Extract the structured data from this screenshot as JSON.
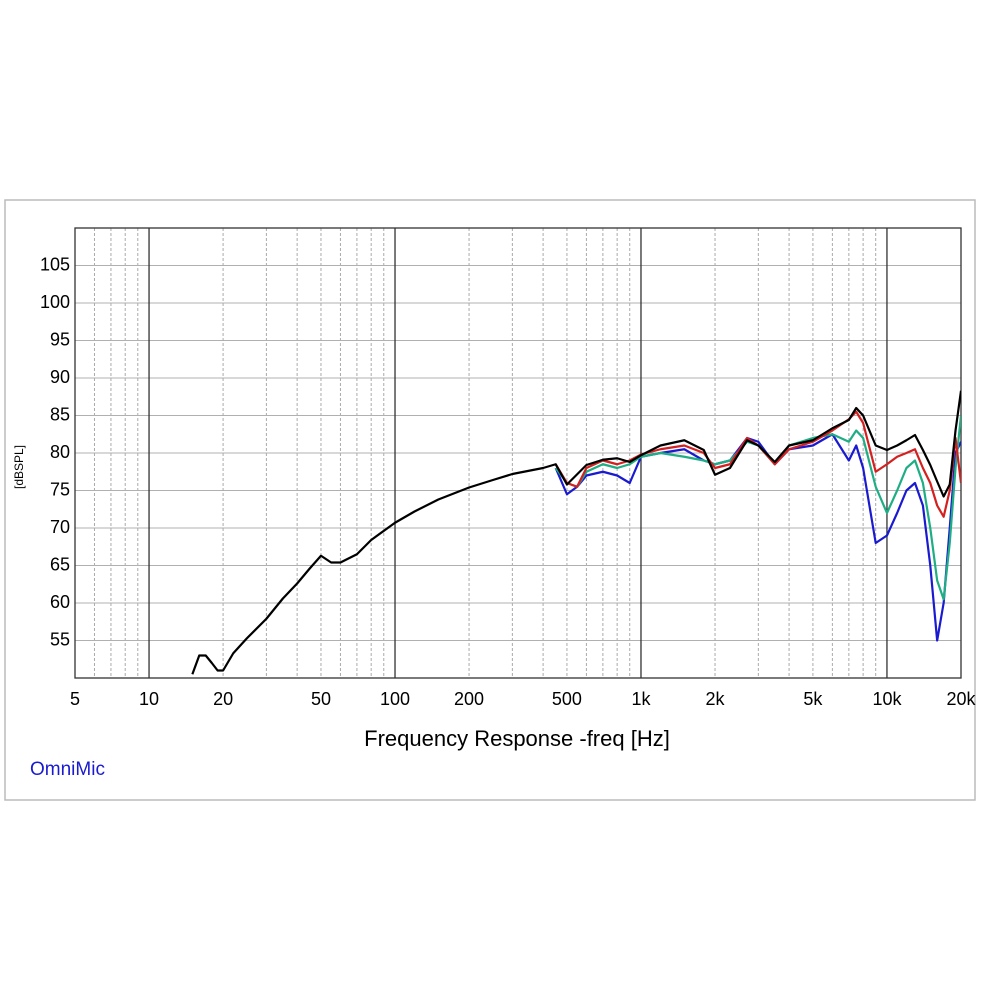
{
  "chart_data": {
    "type": "line",
    "x_label": "Frequency Response -freq [Hz]",
    "y_label": "[dBSPL]",
    "watermark": "OmniMic",
    "x_scale": "log",
    "grid": true,
    "log_minor_grid": true,
    "xlim": [
      5,
      20000
    ],
    "ylim": [
      50,
      110
    ],
    "xticks": [
      5,
      10,
      20,
      50,
      100,
      200,
      500,
      {
        "value": 1000,
        "label": "1k"
      },
      {
        "value": 2000,
        "label": "2k"
      },
      {
        "value": 5000,
        "label": "5k"
      },
      {
        "value": 10000,
        "label": "10k"
      },
      {
        "value": 20000,
        "label": "20k"
      }
    ],
    "yticks": [
      55,
      60,
      65,
      70,
      75,
      80,
      85,
      90,
      95,
      100,
      105
    ],
    "series": [
      {
        "color": "#1a1ad0",
        "x": [
          450,
          500,
          550,
          600,
          700,
          800,
          900,
          1000,
          1200,
          1500,
          1800,
          2000,
          2300,
          2700,
          3000,
          3500,
          4000,
          5000,
          6000,
          7000,
          7500,
          8000,
          9000,
          10000,
          11000,
          12000,
          13000,
          14000,
          15000,
          16000,
          17000,
          18000,
          19000,
          20000
        ],
        "values": [
          78,
          74.5,
          75.5,
          77,
          77.5,
          77,
          76,
          79.5,
          80,
          80.5,
          79,
          78.5,
          79,
          82,
          81.5,
          78.5,
          80.5,
          81,
          82.5,
          79,
          81,
          78,
          68,
          69,
          72,
          75,
          76,
          73,
          65,
          55,
          60,
          70,
          80,
          81.5
        ]
      },
      {
        "color": "#1fae84",
        "x": [
          450,
          500,
          550,
          600,
          700,
          800,
          900,
          1000,
          1200,
          1500,
          1800,
          2000,
          2300,
          2700,
          3000,
          3500,
          4000,
          5000,
          6000,
          7000,
          7500,
          8000,
          9000,
          10000,
          11000,
          12000,
          13000,
          14000,
          15000,
          16000,
          17000,
          18000,
          19000,
          20000
        ],
        "values": [
          78,
          76,
          75.5,
          77.5,
          78.5,
          78,
          78.5,
          79.5,
          80,
          79.5,
          79,
          78.5,
          79,
          81.5,
          81,
          78.5,
          81,
          82,
          82.5,
          81.5,
          83,
          82,
          75.5,
          72,
          75,
          78,
          79,
          76,
          70,
          63,
          60.5,
          68,
          78,
          85
        ]
      },
      {
        "color": "#d42020",
        "x": [
          450,
          500,
          550,
          600,
          700,
          800,
          900,
          1000,
          1200,
          1500,
          1800,
          2000,
          2300,
          2700,
          3000,
          3500,
          4000,
          5000,
          6000,
          7000,
          7500,
          8000,
          9000,
          10000,
          11000,
          12000,
          13000,
          14000,
          15000,
          16000,
          17000,
          18000,
          19000,
          20000
        ],
        "values": [
          78.5,
          76,
          75.5,
          78,
          79,
          78.5,
          79,
          79.8,
          80.5,
          81,
          80,
          78,
          78.5,
          82,
          81,
          78.5,
          80.5,
          81.5,
          83,
          84.5,
          85.5,
          84,
          77.5,
          78.5,
          79.5,
          80,
          80.5,
          78,
          76,
          73,
          71.5,
          75,
          82,
          76
        ]
      },
      {
        "color": "#000000",
        "x": [
          15,
          16,
          17,
          18,
          19,
          20,
          22,
          25,
          30,
          35,
          40,
          45,
          50,
          55,
          60,
          70,
          80,
          100,
          120,
          150,
          200,
          250,
          300,
          400,
          450,
          500,
          600,
          700,
          800,
          900,
          1000,
          1200,
          1500,
          1800,
          2000,
          2300,
          2700,
          3000,
          3500,
          4000,
          5000,
          6000,
          7000,
          7500,
          8000,
          9000,
          10000,
          11000,
          12000,
          13000,
          14000,
          15000,
          16000,
          17000,
          18000,
          19000,
          20000
        ],
        "values": [
          50.5,
          53,
          53,
          52,
          51,
          51,
          53.3,
          55.3,
          57.9,
          60.6,
          62.6,
          64.6,
          66.3,
          65.4,
          65.4,
          66.5,
          68.4,
          70.7,
          72.2,
          73.8,
          75.4,
          76.4,
          77.2,
          78,
          78.5,
          75.8,
          78.4,
          79.1,
          79.3,
          78.8,
          79.7,
          81,
          81.7,
          80.4,
          77.1,
          78,
          81.7,
          81,
          78.8,
          81,
          81.7,
          83.3,
          84.4,
          86,
          85,
          81,
          80.4,
          81,
          81.7,
          82.4,
          80.4,
          78.4,
          76.2,
          74.2,
          75.8,
          83,
          88.3
        ]
      }
    ]
  }
}
